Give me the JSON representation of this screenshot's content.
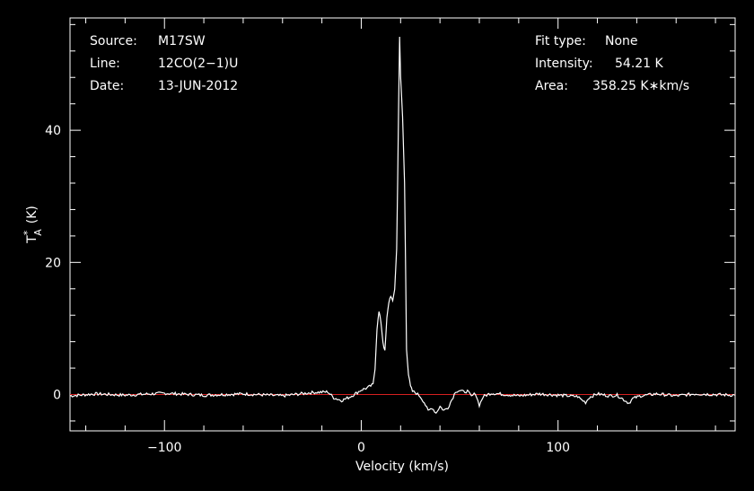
{
  "chart_data": {
    "type": "line",
    "xlabel": "Velocity (km/s)",
    "ylabel_main": "T",
    "ylabel_sup": "*",
    "ylabel_sub": "A",
    "ylabel_unit": "(K)",
    "xlim": [
      -148,
      190
    ],
    "ylim": [
      -5.5,
      57
    ],
    "xticks": [
      -100,
      0,
      100
    ],
    "xtick_labels": [
      "−100",
      "0",
      "100"
    ],
    "yticks": [
      0,
      20,
      40
    ],
    "ytick_labels": [
      "0",
      "20",
      "40"
    ],
    "baseline": 0,
    "grid": false,
    "colors": {
      "background": "#000000",
      "spectrum": "#ffffff",
      "baseline": "#d62020",
      "frame": "#ffffff"
    },
    "series": [
      {
        "x": [
          -148,
          -135,
          -120,
          -100,
          -80,
          -60,
          -40,
          -25,
          -17,
          -14,
          -10,
          -6,
          -2,
          0,
          3,
          6,
          7,
          8,
          9,
          10,
          11,
          12,
          12.5,
          13,
          14,
          15,
          16,
          17,
          18,
          18.5,
          19,
          19.5,
          20,
          20.5,
          21,
          22,
          22.5,
          23,
          24,
          25,
          26,
          28,
          30,
          32,
          34,
          36,
          38,
          40,
          42,
          44,
          46,
          48,
          50,
          52,
          54,
          56,
          58,
          60,
          62,
          66,
          70,
          80,
          90,
          100,
          110,
          112,
          114,
          116,
          120,
          126,
          130,
          134,
          136,
          138,
          142,
          150,
          160,
          170,
          180,
          190
        ],
        "y": [
          -0.2,
          0.1,
          -0.1,
          0.2,
          -0.1,
          0.1,
          -0.2,
          0.3,
          0.4,
          -0.5,
          -0.9,
          -0.4,
          0.3,
          0.7,
          1.0,
          1.5,
          4.0,
          10.0,
          12.5,
          11.0,
          8.0,
          6.5,
          9.0,
          11.5,
          14.0,
          15.0,
          14.0,
          16.0,
          22.0,
          32.0,
          44.0,
          54.2,
          48.0,
          45.0,
          42.0,
          32.0,
          20.0,
          7.0,
          3.0,
          1.2,
          0.5,
          0.2,
          -0.3,
          -1.2,
          -2.5,
          -2.0,
          -2.8,
          -1.8,
          -2.4,
          -2.0,
          -0.8,
          0.5,
          0.6,
          0.4,
          0.5,
          -0.3,
          0.2,
          -1.6,
          -0.3,
          0.2,
          0.1,
          -0.2,
          0.1,
          -0.1,
          -0.3,
          -0.8,
          -1.2,
          -0.4,
          0.1,
          -0.2,
          -0.1,
          -0.9,
          -1.3,
          -0.6,
          -0.2,
          0.1,
          -0.2,
          0.1,
          0.0,
          -0.1
        ]
      }
    ]
  },
  "info_left": [
    {
      "key": "Source:",
      "value": "M17SW"
    },
    {
      "key": "Line:",
      "value": "12CO(2−1)U"
    },
    {
      "key": "Date:",
      "value": "13-JUN-2012"
    }
  ],
  "info_right": [
    {
      "key": "Fit type:",
      "value": "None"
    },
    {
      "key": "Intensity:",
      "value": "54.21 K"
    },
    {
      "key": "Area:",
      "value": "358.25 K∗km/s"
    }
  ]
}
